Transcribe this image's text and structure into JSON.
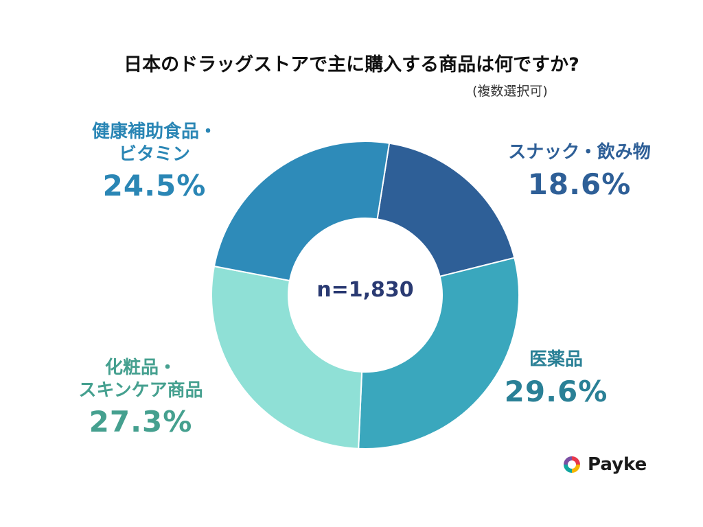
{
  "title": "日本のドラッグストアで主に購入する商品は何ですか?",
  "subtitle": "(複数選択可)",
  "center_label": "n=1,830",
  "brand": {
    "name": "Payke",
    "icon": "payke-logo-icon"
  },
  "colors": {
    "snack": "#2e5f97",
    "medicine": "#3aa7bd",
    "cosmetics": "#8fe0d6",
    "supplement": "#2e8bb9",
    "label_snack": "#2e5f97",
    "label_medicine": "#2a8096",
    "label_cosmetics": "#45a08f",
    "label_supplement": "#2a86b5"
  },
  "chart_data": {
    "type": "pie",
    "donut": true,
    "title": "日本のドラッグストアで主に購入する商品は何ですか?",
    "subtitle": "(複数選択可)",
    "center_text": "n=1,830",
    "slices": [
      {
        "label_lines": [
          "スナック・飲み物"
        ],
        "value": 18.6,
        "display": "18.6%",
        "color_key": "snack"
      },
      {
        "label_lines": [
          "医薬品"
        ],
        "value": 29.6,
        "display": "29.6%",
        "color_key": "medicine"
      },
      {
        "label_lines": [
          "化粧品・",
          "スキンケア商品"
        ],
        "value": 27.3,
        "display": "27.3%",
        "color_key": "cosmetics"
      },
      {
        "label_lines": [
          "健康補助食品・",
          "ビタミン"
        ],
        "value": 24.5,
        "display": "24.5%",
        "color_key": "supplement"
      }
    ]
  }
}
